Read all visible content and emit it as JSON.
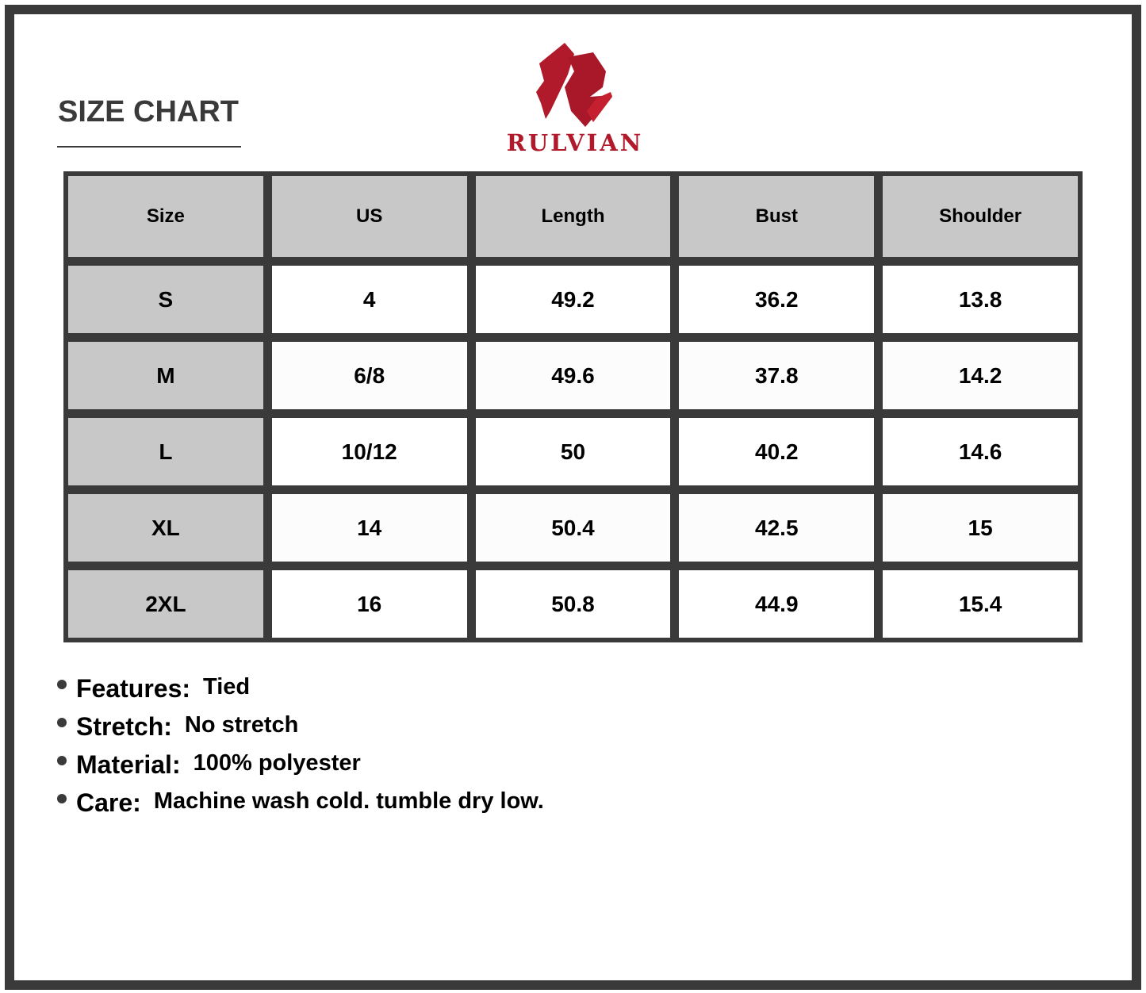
{
  "title": "SIZE CHART",
  "brand": {
    "name": "RULVIAN",
    "color": "#b01a2a"
  },
  "table": {
    "headers": [
      "Size",
      "US",
      "Length",
      "Bust",
      "Shoulder"
    ],
    "rows": [
      [
        "S",
        "4",
        "49.2",
        "36.2",
        "13.8"
      ],
      [
        "M",
        "6/8",
        "49.6",
        "37.8",
        "14.2"
      ],
      [
        "L",
        "10/12",
        "50",
        "40.2",
        "14.6"
      ],
      [
        "XL",
        "14",
        "50.4",
        "42.5",
        "15"
      ],
      [
        "2XL",
        "16",
        "50.8",
        "44.9",
        "15.4"
      ]
    ]
  },
  "features": [
    {
      "label": "Features:",
      "value": "Tied"
    },
    {
      "label": "Stretch:",
      "value": "No stretch"
    },
    {
      "label": "Material:",
      "value": "100% polyester"
    },
    {
      "label": "Care:",
      "value": "Machine wash cold. tumble dry low."
    }
  ]
}
